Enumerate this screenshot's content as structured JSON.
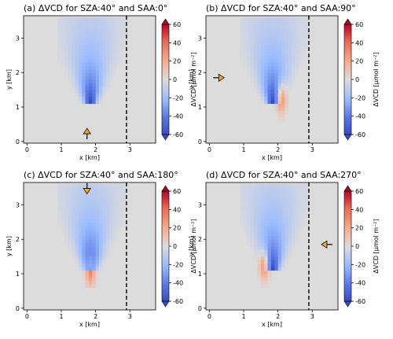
{
  "chart_data": [
    {
      "type": "heatmap",
      "title": "(a) ΔVCD for SZA:40° and SAA:0°",
      "xlabel": "x [km]",
      "ylabel": "y [km]",
      "xlim": [
        -0.1,
        3.75
      ],
      "ylim": [
        -0.05,
        3.65
      ],
      "xticks": [
        0,
        1,
        2,
        3
      ],
      "yticks": [
        0,
        1,
        2,
        3
      ],
      "dashed_line_x": 2.9,
      "source": {
        "x": 1.85,
        "y": 1.15
      },
      "shift": [
        0,
        0
      ],
      "sun_arrow": {
        "x": 1.75,
        "y": 0.2,
        "direction": "up"
      },
      "colorbar": {
        "label": "ΔVCD [μmol m⁻²]",
        "min": -60,
        "max": 60,
        "ticks": [
          60,
          40,
          20,
          0,
          -20,
          -40,
          -60
        ]
      }
    },
    {
      "type": "heatmap",
      "title": "(b) ΔVCD for SZA:40° and SAA:90°",
      "xlabel": "x [km]",
      "ylabel": "y [km]",
      "xlim": [
        -0.1,
        3.75
      ],
      "ylim": [
        -0.05,
        3.65
      ],
      "xticks": [
        0,
        1,
        2,
        3
      ],
      "yticks": [
        0,
        1,
        2,
        3
      ],
      "dashed_line_x": 2.9,
      "source": {
        "x": 1.85,
        "y": 1.15
      },
      "shift": [
        0.25,
        0
      ],
      "sun_arrow": {
        "x": 0.25,
        "y": 1.85,
        "direction": "right"
      },
      "colorbar": {
        "label": "ΔVCD [μmol m⁻²]",
        "min": -60,
        "max": 60,
        "ticks": [
          60,
          40,
          20,
          0,
          -20,
          -40,
          -60
        ]
      }
    },
    {
      "type": "heatmap",
      "title": "(c) ΔVCD for SZA:40° and SAA:180°",
      "xlabel": "x [km]",
      "ylabel": "y [km]",
      "xlim": [
        -0.1,
        3.75
      ],
      "ylim": [
        -0.05,
        3.65
      ],
      "xticks": [
        0,
        1,
        2,
        3
      ],
      "yticks": [
        0,
        1,
        2,
        3
      ],
      "dashed_line_x": 2.9,
      "source": {
        "x": 1.85,
        "y": 1.15
      },
      "shift": [
        0,
        -0.2
      ],
      "sun_arrow": {
        "x": 1.75,
        "y": 3.5,
        "direction": "down"
      },
      "colorbar": {
        "label": "ΔVCD [μmol m⁻²]",
        "min": -60,
        "max": 60,
        "ticks": [
          60,
          40,
          20,
          0,
          -20,
          -40,
          -60
        ]
      }
    },
    {
      "type": "heatmap",
      "title": "(d) ΔVCD for SZA:40° and SAA:270°",
      "xlabel": "x [km]",
      "ylabel": "y [km]",
      "xlim": [
        -0.1,
        3.75
      ],
      "ylim": [
        -0.05,
        3.65
      ],
      "xticks": [
        0,
        1,
        2,
        3
      ],
      "yticks": [
        0,
        1,
        2,
        3
      ],
      "dashed_line_x": 2.9,
      "source": {
        "x": 1.85,
        "y": 1.15
      },
      "shift": [
        -0.25,
        0
      ],
      "sun_arrow": {
        "x": 3.45,
        "y": 1.85,
        "direction": "left"
      },
      "colorbar": {
        "label": "ΔVCD [μmol m⁻²]",
        "min": -60,
        "max": 60,
        "ticks": [
          60,
          40,
          20,
          0,
          -20,
          -40,
          -60
        ]
      }
    }
  ],
  "colors": {
    "background": "#dcdcdc",
    "positive": "#b40426",
    "negative": "#3b4cc0",
    "neutral": "#dddcdc",
    "arrow_fill": "#f5a623"
  }
}
